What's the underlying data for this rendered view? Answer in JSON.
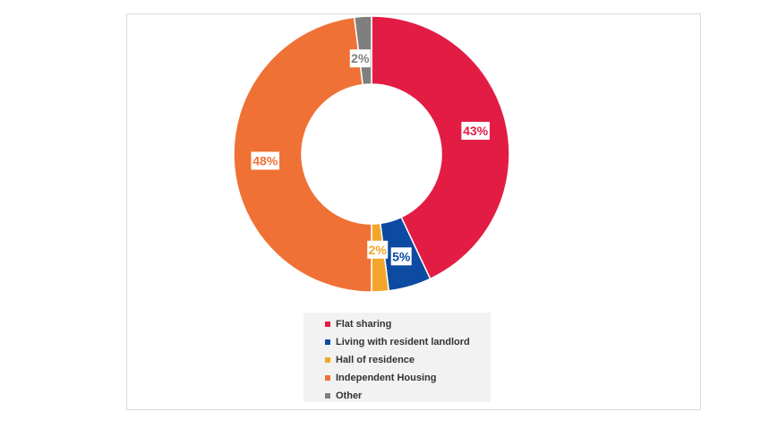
{
  "chart_data": {
    "type": "pie",
    "donut": true,
    "title": "",
    "categories": [
      "Flat sharing",
      "Living with resident landlord",
      "Hall of residence",
      "Independent Housing",
      "Other"
    ],
    "values": [
      43,
      5,
      2,
      48,
      2
    ],
    "data_labels": [
      "43%",
      "5%",
      "2%",
      "48%",
      "2%"
    ],
    "colors": [
      "#e31c44",
      "#0d4aa2",
      "#f4a62a",
      "#f07135",
      "#7f7f7f"
    ],
    "start_angle_deg": 0,
    "direction": "clockwise",
    "legend_position": "bottom"
  }
}
